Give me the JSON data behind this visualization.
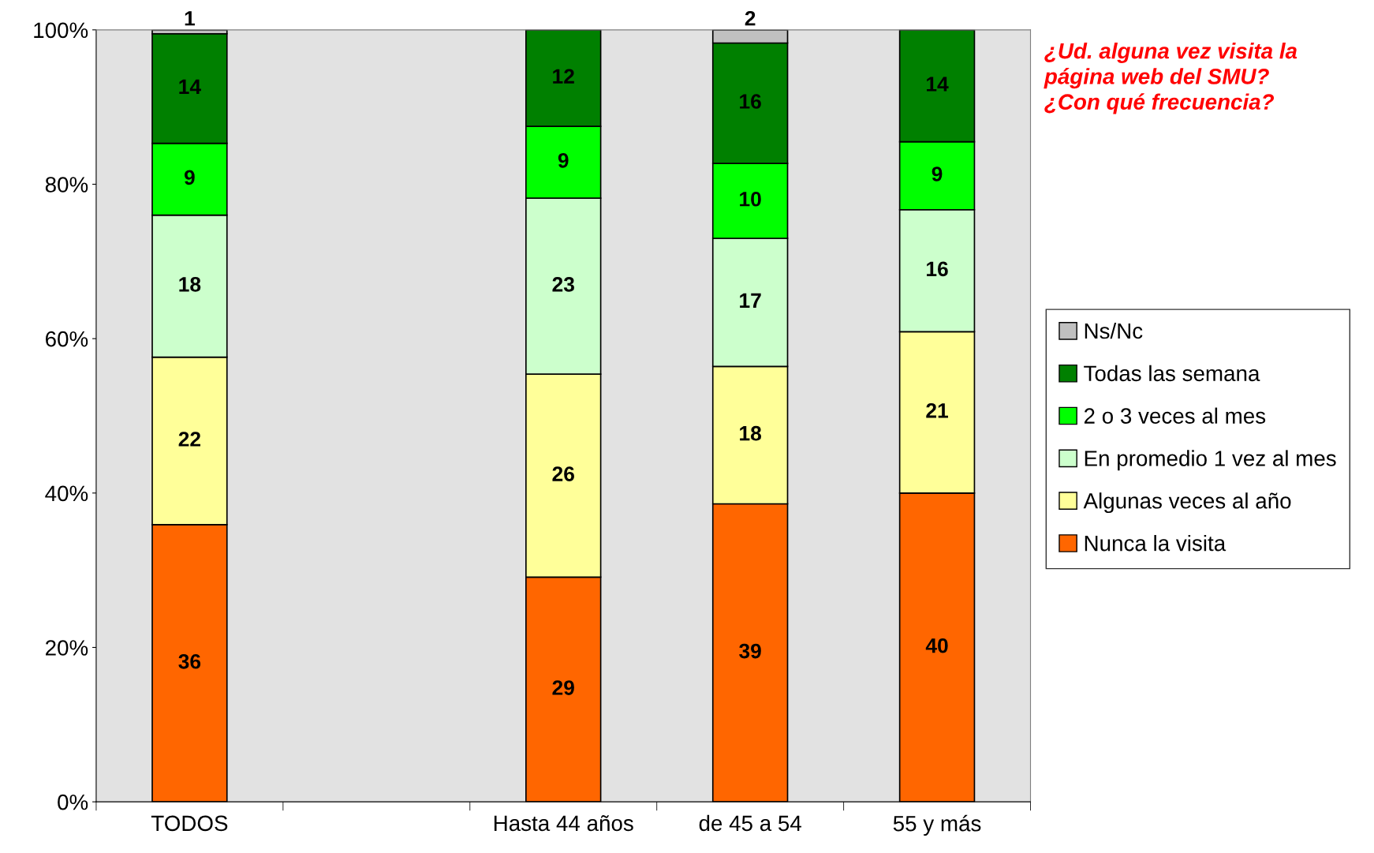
{
  "chart_data": {
    "type": "bar",
    "stacked": true,
    "title": "¿Ud. alguna vez visita la\npágina web del SMU?\n¿Con qué frecuencia?",
    "categories": [
      "TODOS",
      null,
      "Hasta 44 años",
      "de 45 a 54",
      "55 y más"
    ],
    "series": [
      {
        "name": "Nunca la visita",
        "color": "#ff6600",
        "values": [
          35.9,
          null,
          29.1,
          38.6,
          40.0
        ],
        "value_labels": [
          "36",
          null,
          "29",
          "39",
          "40"
        ]
      },
      {
        "name": "Algunas veces al año",
        "color": "#ffff99",
        "values": [
          21.7,
          null,
          26.3,
          17.8,
          20.9
        ],
        "value_labels": [
          "22",
          null,
          "26",
          "18",
          "21"
        ]
      },
      {
        "name": "En promedio 1 vez al mes",
        "color": "#ccffcc",
        "values": [
          18.4,
          null,
          22.8,
          16.6,
          15.8
        ],
        "value_labels": [
          "18",
          null,
          "23",
          "17",
          "16"
        ]
      },
      {
        "name": "2 o 3 veces al mes",
        "color": "#00ff00",
        "values": [
          9.3,
          null,
          9.3,
          9.7,
          8.8
        ],
        "value_labels": [
          "9",
          null,
          "9",
          "10",
          "9"
        ]
      },
      {
        "name": "Todas las semana",
        "color": "#008000",
        "values": [
          14.2,
          null,
          12.5,
          15.6,
          14.5
        ],
        "value_labels": [
          "14",
          null,
          "12",
          "16",
          "14"
        ]
      },
      {
        "name": "Ns/Nc",
        "color": "#c0c0c0",
        "values": [
          0.5,
          null,
          null,
          1.7,
          null
        ],
        "value_labels": [
          "1",
          null,
          null,
          "2",
          null
        ]
      }
    ],
    "ylim": [
      0,
      100
    ],
    "yticks": [
      {
        "value": 0,
        "label": "0%"
      },
      {
        "value": 20,
        "label": "20%"
      },
      {
        "value": 40,
        "label": "40%"
      },
      {
        "value": 60,
        "label": "60%"
      },
      {
        "value": 80,
        "label": "80%"
      },
      {
        "value": 100,
        "label": "100%"
      }
    ],
    "grid": false,
    "legend": "right"
  }
}
